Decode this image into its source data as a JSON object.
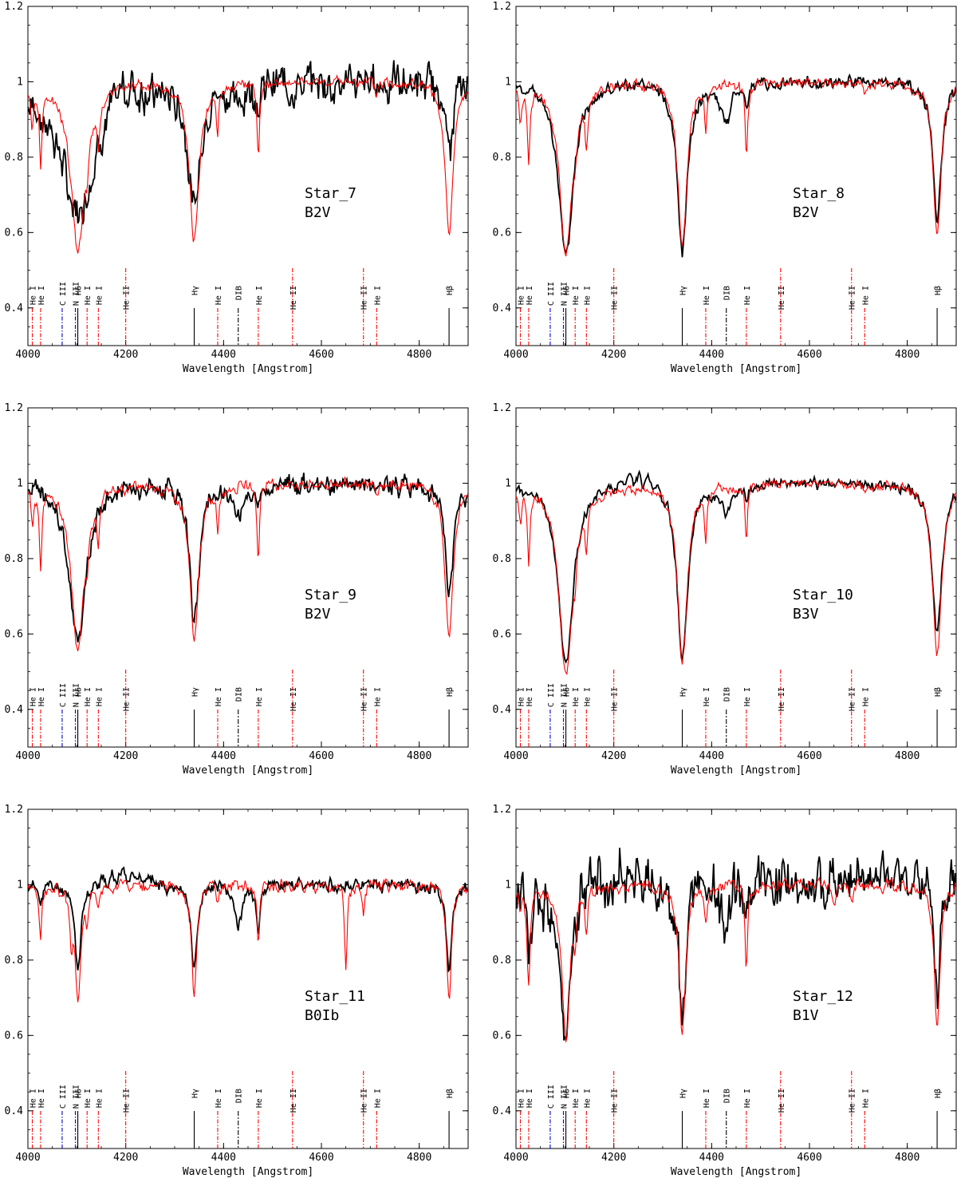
{
  "figure": {
    "common": {
      "xlabel": "Wavelength [Angstrom]",
      "xlim": [
        4000,
        4900
      ],
      "ylim": [
        0.3,
        1.2
      ],
      "xticks": [
        4000,
        4200,
        4400,
        4600,
        4800
      ],
      "yticks": [
        0.4,
        0.6,
        0.8,
        1,
        1.2
      ],
      "observed_color": "#000000",
      "model_color": "#ff0000",
      "marker_colors": {
        "hydrogen": "#000000",
        "dib": "#000000",
        "helium": "#ff0000",
        "metal": "#0000cc"
      }
    },
    "line_markers": [
      {
        "label": "He I",
        "wl": 4009,
        "kind": "helium"
      },
      {
        "label": "He I",
        "wl": 4026,
        "kind": "helium"
      },
      {
        "label": "C III",
        "wl": 4070,
        "kind": "metal"
      },
      {
        "label": "N III",
        "wl": 4097,
        "kind": "metal"
      },
      {
        "label": "Hδ",
        "wl": 4102,
        "kind": "hydrogen"
      },
      {
        "label": "He I",
        "wl": 4121,
        "kind": "helium"
      },
      {
        "label": "He I",
        "wl": 4144,
        "kind": "helium"
      },
      {
        "label": "He II",
        "wl": 4200,
        "kind": "helium"
      },
      {
        "label": "Hγ",
        "wl": 4340,
        "kind": "hydrogen"
      },
      {
        "label": "He I",
        "wl": 4388,
        "kind": "helium"
      },
      {
        "label": "DIB",
        "wl": 4430,
        "kind": "dib"
      },
      {
        "label": "He I",
        "wl": 4471,
        "kind": "helium"
      },
      {
        "label": "He II",
        "wl": 4541,
        "kind": "helium"
      },
      {
        "label": "He II",
        "wl": 4686,
        "kind": "helium"
      },
      {
        "label": "He I",
        "wl": 4713,
        "kind": "helium"
      },
      {
        "label": "Hβ",
        "wl": 4861,
        "kind": "hydrogen"
      }
    ]
  },
  "chart_data": [
    {
      "type": "line",
      "star": "Star_7",
      "sptype": "B2V",
      "xlabel": "Wavelength [Angstrom]",
      "xlim": [
        4000,
        4900
      ],
      "ylim": [
        0.3,
        1.2
      ],
      "series": [
        {
          "lines": [
            [
              4102,
              0.35,
              40
            ],
            [
              4340,
              0.33,
              14
            ],
            [
              4861,
              0.2,
              8
            ],
            [
              4471,
              0.04,
              5
            ],
            [
              4026,
              0.04,
              5
            ],
            [
              4430,
              0.05,
              12
            ]
          ],
          "noise": 0.035,
          "seed": 7,
          "wiggle": [
            [
              4200,
              0.06,
              20
            ]
          ]
        },
        {
          "lines": [
            [
              4102,
              0.44,
              18
            ],
            [
              4340,
              0.42,
              12
            ],
            [
              4861,
              0.41,
              10
            ],
            [
              4026,
              0.2,
              3
            ],
            [
              4009,
              0.1,
              3
            ],
            [
              4121,
              0.08,
              3
            ],
            [
              4144,
              0.12,
              3
            ],
            [
              4388,
              0.11,
              3
            ],
            [
              4471,
              0.2,
              3
            ],
            [
              4713,
              0.04,
              3
            ],
            [
              4921,
              0.1,
              3
            ]
          ],
          "noise": 0.01,
          "seed": 70
        }
      ]
    },
    {
      "type": "line",
      "star": "Star_8",
      "sptype": "B2V",
      "xlabel": "Wavelength [Angstrom]",
      "xlim": [
        4000,
        4900
      ],
      "ylim": [
        0.3,
        1.2
      ],
      "series": [
        {
          "lines": [
            [
              4102,
              0.47,
              18
            ],
            [
              4340,
              0.45,
              12
            ],
            [
              4861,
              0.38,
              10
            ],
            [
              4430,
              0.1,
              12
            ],
            [
              4471,
              0.05,
              4
            ]
          ],
          "noise": 0.012,
          "seed": 8
        },
        {
          "lines": [
            [
              4102,
              0.45,
              16
            ],
            [
              4340,
              0.44,
              11
            ],
            [
              4861,
              0.4,
              10
            ],
            [
              4026,
              0.2,
              3
            ],
            [
              4009,
              0.1,
              3
            ],
            [
              4121,
              0.06,
              3
            ],
            [
              4144,
              0.12,
              3
            ],
            [
              4388,
              0.11,
              3
            ],
            [
              4471,
              0.2,
              3
            ],
            [
              4713,
              0.04,
              3
            ]
          ],
          "noise": 0.01,
          "seed": 80
        }
      ]
    },
    {
      "type": "line",
      "star": "Star_9",
      "sptype": "B2V",
      "xlabel": "Wavelength [Angstrom]",
      "xlim": [
        4000,
        4900
      ],
      "ylim": [
        0.3,
        1.2
      ],
      "series": [
        {
          "lines": [
            [
              4102,
              0.43,
              20
            ],
            [
              4340,
              0.36,
              12
            ],
            [
              4861,
              0.3,
              10
            ],
            [
              4430,
              0.08,
              14
            ],
            [
              4471,
              0.06,
              4
            ]
          ],
          "noise": 0.02,
          "seed": 9
        },
        {
          "lines": [
            [
              4102,
              0.44,
              16
            ],
            [
              4340,
              0.42,
              11
            ],
            [
              4861,
              0.41,
              10
            ],
            [
              4026,
              0.2,
              3
            ],
            [
              4009,
              0.1,
              3
            ],
            [
              4121,
              0.08,
              3
            ],
            [
              4144,
              0.12,
              3
            ],
            [
              4388,
              0.11,
              3
            ],
            [
              4471,
              0.2,
              3
            ],
            [
              4713,
              0.04,
              3
            ]
          ],
          "noise": 0.01,
          "seed": 90
        }
      ]
    },
    {
      "type": "line",
      "star": "Star_10",
      "sptype": "B3V",
      "xlabel": "Wavelength [Angstrom]",
      "xlim": [
        4000,
        4900
      ],
      "ylim": [
        0.3,
        1.2
      ],
      "series": [
        {
          "lines": [
            [
              4102,
              0.48,
              18
            ],
            [
              4340,
              0.46,
              13
            ],
            [
              4861,
              0.4,
              12
            ],
            [
              4430,
              0.08,
              12
            ],
            [
              4471,
              0.03,
              4
            ]
          ],
          "noise": 0.01,
          "seed": 10,
          "wiggle": [
            [
              4250,
              0.04,
              40
            ]
          ]
        },
        {
          "lines": [
            [
              4102,
              0.5,
              17
            ],
            [
              4340,
              0.47,
              12
            ],
            [
              4861,
              0.46,
              11
            ],
            [
              4026,
              0.2,
              3
            ],
            [
              4009,
              0.08,
              3
            ],
            [
              4121,
              0.07,
              3
            ],
            [
              4144,
              0.12,
              3
            ],
            [
              4388,
              0.12,
              3
            ],
            [
              4471,
              0.16,
              3
            ],
            [
              4713,
              0.03,
              3
            ]
          ],
          "noise": 0.01,
          "seed": 100
        }
      ]
    },
    {
      "type": "line",
      "star": "Star_11",
      "sptype": "B0Ib",
      "xlabel": "Wavelength [Angstrom]",
      "xlim": [
        4000,
        4900
      ],
      "ylim": [
        0.3,
        1.2
      ],
      "series": [
        {
          "lines": [
            [
              4102,
              0.22,
              8
            ],
            [
              4340,
              0.23,
              7
            ],
            [
              4861,
              0.22,
              7
            ],
            [
              4430,
              0.1,
              10
            ],
            [
              4471,
              0.12,
              4
            ],
            [
              4026,
              0.06,
              3
            ]
          ],
          "noise": 0.012,
          "seed": 11,
          "wiggle": [
            [
              4200,
              0.045,
              40
            ]
          ]
        },
        {
          "lines": [
            [
              4102,
              0.29,
              8
            ],
            [
              4340,
              0.3,
              6
            ],
            [
              4861,
              0.31,
              6
            ],
            [
              4026,
              0.15,
              3
            ],
            [
              4089,
              0.1,
              3
            ],
            [
              4121,
              0.07,
              3
            ],
            [
              4144,
              0.06,
              3
            ],
            [
              4388,
              0.05,
              3
            ],
            [
              4471,
              0.17,
              3
            ],
            [
              4650,
              0.22,
              3
            ],
            [
              4686,
              0.08,
              3
            ]
          ],
          "noise": 0.012,
          "seed": 110
        }
      ]
    },
    {
      "type": "line",
      "star": "Star_12",
      "sptype": "B1V",
      "xlabel": "Wavelength [Angstrom]",
      "xlim": [
        4000,
        4900
      ],
      "ylim": [
        0.3,
        1.2
      ],
      "series": [
        {
          "lines": [
            [
              4102,
              0.4,
              14
            ],
            [
              4340,
              0.33,
              9
            ],
            [
              4861,
              0.3,
              7
            ],
            [
              4026,
              0.22,
              5
            ],
            [
              4430,
              0.1,
              10
            ],
            [
              4471,
              0.1,
              4
            ]
          ],
          "noise": 0.05,
          "seed": 12,
          "wiggle": [
            [
              4150,
              0.07,
              30
            ],
            [
              4230,
              0.05,
              20
            ]
          ]
        },
        {
          "lines": [
            [
              4102,
              0.41,
              10
            ],
            [
              4340,
              0.39,
              8
            ],
            [
              4861,
              0.37,
              7
            ],
            [
              4026,
              0.25,
              4
            ],
            [
              4009,
              0.05,
              3
            ],
            [
              4121,
              0.1,
              3
            ],
            [
              4144,
              0.12,
              3
            ],
            [
              4388,
              0.1,
              3
            ],
            [
              4471,
              0.23,
              3
            ],
            [
              4650,
              0.05,
              3
            ],
            [
              4686,
              0.04,
              3
            ]
          ],
          "noise": 0.012,
          "seed": 120
        }
      ]
    }
  ]
}
